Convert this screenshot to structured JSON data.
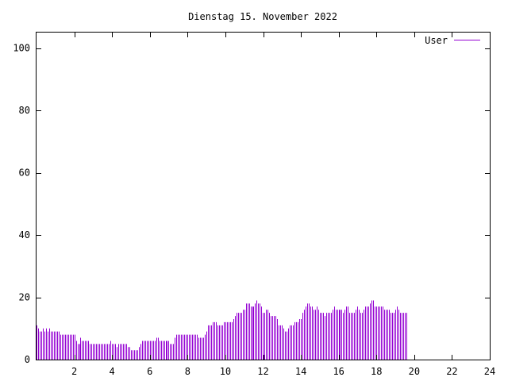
{
  "chart_data": {
    "type": "bar",
    "title": "Dienstag 15. November 2022",
    "xlabel": "",
    "ylabel": "",
    "xlim": [
      0,
      24
    ],
    "ylim": [
      0,
      105
    ],
    "x_ticks": [
      2,
      4,
      6,
      8,
      10,
      12,
      14,
      16,
      18,
      20,
      22,
      24
    ],
    "y_ticks": [
      0,
      20,
      40,
      60,
      80,
      100
    ],
    "grid": false,
    "legend_position": "top-right",
    "series": [
      {
        "name": "User",
        "color": "#9400d3",
        "x_start": 0,
        "x_step": 0.0833,
        "values": [
          11,
          10,
          9,
          9,
          10,
          9,
          10,
          9,
          10,
          9,
          9,
          9,
          9,
          9,
          9,
          8,
          8,
          8,
          8,
          8,
          8,
          8,
          8,
          8,
          8,
          6,
          5,
          5,
          7,
          6,
          6,
          6,
          6,
          6,
          5,
          5,
          5,
          5,
          5,
          5,
          5,
          5,
          5,
          5,
          5,
          5,
          5,
          6,
          5,
          5,
          5,
          4,
          5,
          5,
          5,
          5,
          5,
          5,
          4,
          4,
          3,
          3,
          3,
          3,
          3,
          4,
          5,
          6,
          6,
          6,
          6,
          6,
          6,
          6,
          6,
          6,
          7,
          7,
          6,
          6,
          6,
          6,
          6,
          6,
          6,
          5,
          5,
          5,
          7,
          8,
          8,
          8,
          8,
          8,
          8,
          8,
          8,
          8,
          8,
          8,
          8,
          8,
          8,
          7,
          7,
          7,
          7,
          8,
          9,
          11,
          11,
          11,
          12,
          12,
          12,
          11,
          11,
          11,
          11,
          12,
          12,
          12,
          12,
          12,
          12,
          13,
          14,
          15,
          15,
          15,
          15,
          16,
          16,
          18,
          18,
          18,
          17,
          17,
          17,
          18,
          19,
          18,
          18,
          17,
          15,
          15,
          16,
          16,
          15,
          14,
          14,
          14,
          14,
          13,
          11,
          11,
          11,
          10,
          9,
          9,
          10,
          11,
          11,
          11,
          12,
          12,
          12,
          13,
          13,
          15,
          16,
          17,
          18,
          18,
          17,
          17,
          16,
          16,
          17,
          16,
          15,
          15,
          15,
          14,
          15,
          15,
          15,
          15,
          16,
          17,
          16,
          16,
          16,
          16,
          16,
          15,
          16,
          17,
          17,
          15,
          15,
          15,
          15,
          16,
          17,
          16,
          15,
          15,
          16,
          17,
          17,
          17,
          18,
          19,
          19,
          17,
          17,
          17,
          17,
          17,
          17,
          16,
          16,
          16,
          16,
          15,
          15,
          15,
          16,
          17,
          16,
          15,
          15,
          15,
          15,
          15
        ]
      }
    ]
  }
}
